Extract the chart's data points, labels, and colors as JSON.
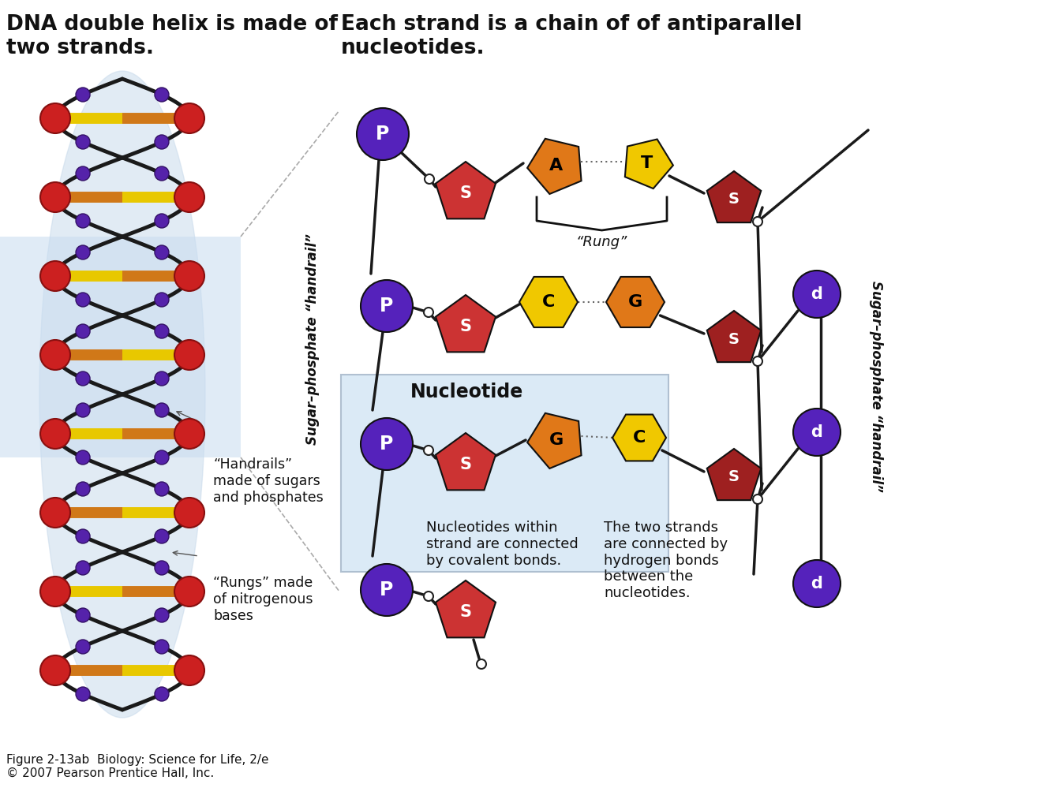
{
  "title_left": "DNA double helix is made of\ntwo strands.",
  "title_right": "Each strand is a chain of of antiparallel\nnucleotides.",
  "caption": "Figure 2-13ab  Biology: Science for Life, 2/e\n© 2007 Pearson Prentice Hall, Inc.",
  "colors": {
    "phosphate": "#5522bb",
    "sugar_left_dark": "#cc2222",
    "sugar_left_mid": "#cc3333",
    "sugar_right": "#b03030",
    "base_orange": "#e07818",
    "base_yellow": "#f0c800",
    "nucleotide_box": "#dce8f4",
    "background": "#ffffff",
    "helix_red": "#cc2222",
    "helix_orange_rung": "#d07010",
    "helix_yellow_rung": "#e8cc00",
    "helix_purple": "#552299",
    "helix_shadow": "#c8d8e8"
  },
  "left_label": "Sugar–phosphate “handrail”",
  "right_label": "Sugar–phosphate “handrail”",
  "annotations": {
    "handrails": "“Handrails”\nmade of sugars\nand phosphates",
    "rungs": "“Rungs” made\nof nitrogenous\nbases",
    "nucleotide": "Nucleotide",
    "rung": "“Rung”",
    "covalent": "Nucleotides within\nstrand are connected\nby covalent bonds.",
    "hydrogen": "The two strands\nare connected by\nhydrogen bonds\nbetween the\nnucleotides."
  }
}
